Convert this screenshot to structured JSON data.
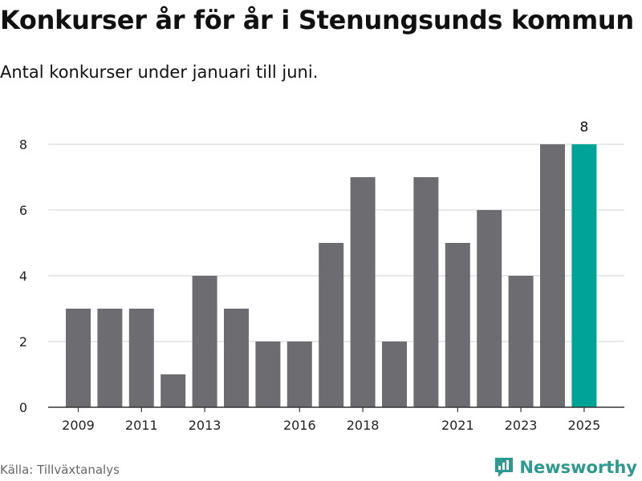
{
  "title": "Konkurser år för år i Stenungsunds kommun",
  "subtitle": "Antal konkurser under januari till juni.",
  "source": "Källa: Tillväxtanalys",
  "brand": "Newsworthy",
  "colors": {
    "bar": "#6d6c71",
    "highlight": "#00a398",
    "grid": "#d9d9d9",
    "axis": "#333333"
  },
  "icons": {
    "brand_logo": "newsworthy-logo-icon"
  },
  "chart_data": {
    "type": "bar",
    "categories": [
      "2009",
      "2010",
      "2011",
      "2012",
      "2013",
      "2014",
      "2015",
      "2016",
      "2017",
      "2018",
      "2019",
      "2020",
      "2021",
      "2022",
      "2023",
      "2024",
      "2025"
    ],
    "values": [
      3,
      3,
      3,
      1,
      4,
      3,
      2,
      2,
      5,
      7,
      2,
      7,
      5,
      6,
      4,
      8,
      8
    ],
    "x_tick_labels": [
      "2009",
      "2011",
      "2013",
      "2016",
      "2018",
      "2021",
      "2023",
      "2025"
    ],
    "y_ticks": [
      0,
      2,
      4,
      6,
      8
    ],
    "ylim": [
      0,
      8
    ],
    "highlight_category": "2025",
    "data_labels": [
      {
        "category": "2025",
        "text": "8"
      }
    ],
    "grid": true,
    "legend": "none"
  }
}
